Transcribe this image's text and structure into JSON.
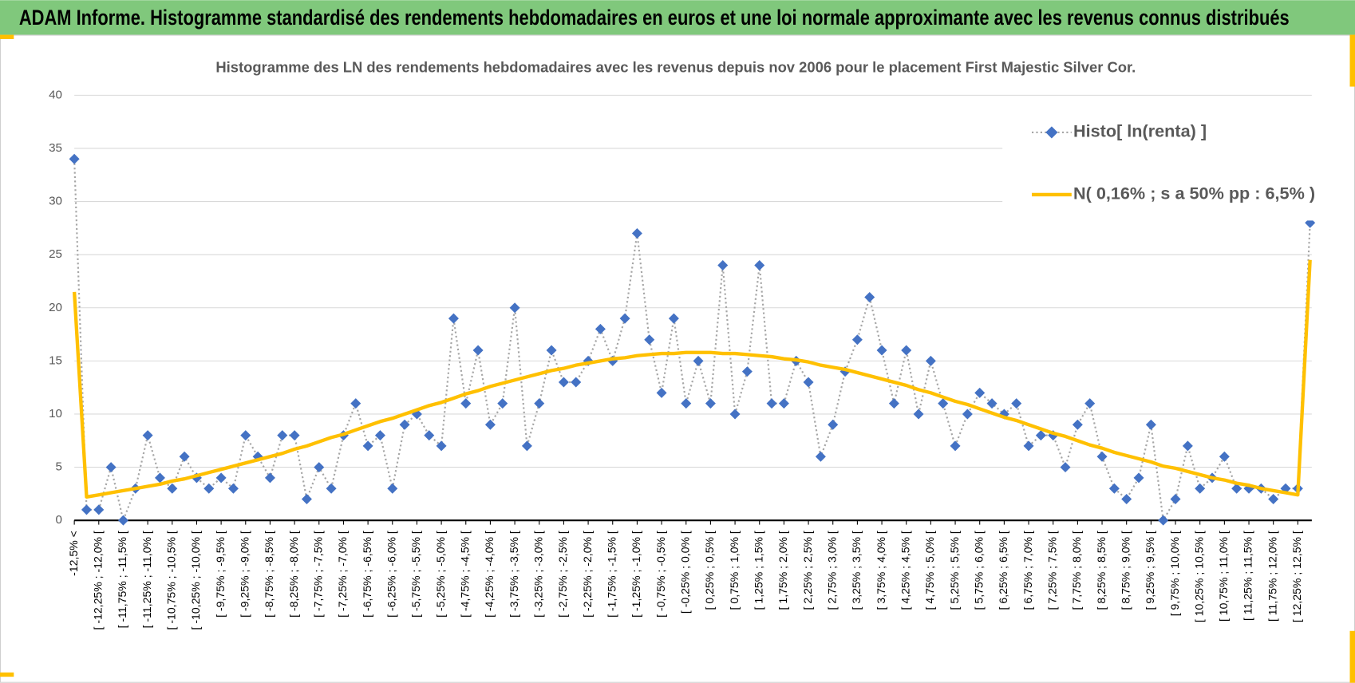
{
  "header_title": "ADAM Informe. Histogramme standardisé des rendements hebdomadaires en euros et une loi normale approximante avec les revenus connus distribués",
  "chart_data": {
    "type": "line",
    "title": "Histogramme des LN des rendements hebdomadaires avec les revenus depuis nov 2006 pour le placement First Majestic Silver Cor.",
    "categories": [
      "-12,5% <",
      null,
      "[ -12,25% ; -12,0% [",
      null,
      "[ -11,75% ; -11,5% [",
      null,
      "[ -11,25% ; -11,0% [",
      null,
      "[ -10,75% ; -10,5% [",
      null,
      "[ -10,25% ; -10,0% [",
      null,
      "[ -9,75% ; -9,5% [",
      null,
      "[ -9,25% ; -9,0% [",
      null,
      "[ -8,75% ; -8,5% [",
      null,
      "[ -8,25% ; -8,0% [",
      null,
      "[ -7,75% ; -7,5% [",
      null,
      "[ -7,25% ; -7,0% [",
      null,
      "[ -6,75% ; -6,5% [",
      null,
      "[ -6,25% ; -6,0% [",
      null,
      "[ -5,75% ; -5,5% [",
      null,
      "[ -5,25% ; -5,0% [",
      null,
      "[ -4,75% ; -4,5% [",
      null,
      "[ -4,25% ; -4,0% [",
      null,
      "[ -3,75% ; -3,5% [",
      null,
      "[ -3,25% ; -3,0% [",
      null,
      "[ -2,75% ; -2,5% [",
      null,
      "[ -2,25% ; -2,0% [",
      null,
      "[ -1,75% ; -1,5% [",
      null,
      "[ -1,25% ; -1,0% [",
      null,
      "[ -0,75% ; -0,5% [",
      null,
      "[ -0,25% ; 0,0% [",
      null,
      "[ 0,25% ; 0,5% [",
      null,
      "[ 0,75% ; 1,0% [",
      null,
      "[ 1,25% ; 1,5% [",
      null,
      "[ 1,75% ; 2,0% [",
      null,
      "[ 2,25% ; 2,5% [",
      null,
      "[ 2,75% ; 3,0% [",
      null,
      "[ 3,25% ; 3,5% [",
      null,
      "[ 3,75% ; 4,0% [",
      null,
      "[ 4,25% ; 4,5% [",
      null,
      "[ 4,75% ; 5,0% [",
      null,
      "[ 5,25% ; 5,5% [",
      null,
      "[ 5,75% ; 6,0% [",
      null,
      "[ 6,25% ; 6,5% [",
      null,
      "[ 6,75% ; 7,0% [",
      null,
      "[ 7,25% ; 7,5% [",
      null,
      "[ 7,75% ; 8,0% [",
      null,
      "[ 8,25% ; 8,5% [",
      null,
      "[ 8,75% ; 9,0% [",
      null,
      "[ 9,25% ; 9,5% [",
      null,
      "[ 9,75% ; 10,0% [",
      null,
      "[ 10,25% ; 10,5% [",
      null,
      "[ 10,75% ; 11,0% [",
      null,
      "[ 11,25% ; 11,5% [",
      null,
      "[ 11,75% ; 12,0% [",
      null,
      "[ 12,25% ; 12,5% [",
      null
    ],
    "series": [
      {
        "name": "Histo[ ln(renta) ]",
        "color": "#4472c4",
        "line_color": "#a6a6a6",
        "style": "dotted-markers",
        "values": [
          34,
          1,
          1,
          5,
          0,
          3,
          8,
          4,
          3,
          6,
          4,
          3,
          4,
          3,
          8,
          6,
          4,
          8,
          8,
          2,
          5,
          3,
          8,
          11,
          7,
          8,
          3,
          9,
          10,
          8,
          7,
          19,
          11,
          16,
          9,
          11,
          20,
          7,
          11,
          16,
          13,
          13,
          15,
          18,
          15,
          19,
          27,
          17,
          12,
          19,
          11,
          15,
          11,
          24,
          10,
          14,
          24,
          11,
          11,
          15,
          13,
          6,
          9,
          14,
          17,
          21,
          16,
          11,
          16,
          10,
          15,
          11,
          7,
          10,
          12,
          11,
          10,
          11,
          7,
          8,
          8,
          5,
          9,
          11,
          6,
          3,
          2,
          4,
          9,
          0,
          2,
          7,
          3,
          4,
          6,
          3,
          3,
          3,
          2,
          3,
          3,
          28
        ]
      },
      {
        "name": "N( 0,16% ; s a 50% pp : 6,5% )",
        "color": "#ffc000",
        "style": "line",
        "values": [
          21.5,
          2.2,
          2.4,
          2.6,
          2.8,
          3.0,
          3.2,
          3.4,
          3.7,
          3.9,
          4.2,
          4.5,
          4.8,
          5.1,
          5.4,
          5.7,
          6.0,
          6.3,
          6.7,
          7.0,
          7.4,
          7.8,
          8.1,
          8.5,
          8.9,
          9.3,
          9.6,
          10.0,
          10.4,
          10.8,
          11.1,
          11.5,
          11.9,
          12.2,
          12.6,
          12.9,
          13.2,
          13.5,
          13.8,
          14.1,
          14.3,
          14.6,
          14.8,
          15.0,
          15.2,
          15.3,
          15.5,
          15.6,
          15.7,
          15.7,
          15.8,
          15.8,
          15.8,
          15.7,
          15.7,
          15.6,
          15.5,
          15.4,
          15.2,
          15.1,
          14.9,
          14.6,
          14.4,
          14.2,
          13.9,
          13.6,
          13.3,
          13.0,
          12.7,
          12.3,
          12.0,
          11.6,
          11.2,
          10.9,
          10.5,
          10.1,
          9.7,
          9.4,
          9.0,
          8.6,
          8.2,
          7.9,
          7.5,
          7.1,
          6.8,
          6.4,
          6.1,
          5.8,
          5.5,
          5.1,
          4.9,
          4.6,
          4.3,
          4.0,
          3.8,
          3.5,
          3.3,
          3.0,
          2.8,
          2.6,
          2.4,
          24.5
        ]
      }
    ],
    "ylim": [
      0,
      40
    ],
    "yticks": [
      0,
      5,
      10,
      15,
      20,
      25,
      30,
      35,
      40
    ],
    "grid": true,
    "legend": "top-right"
  }
}
